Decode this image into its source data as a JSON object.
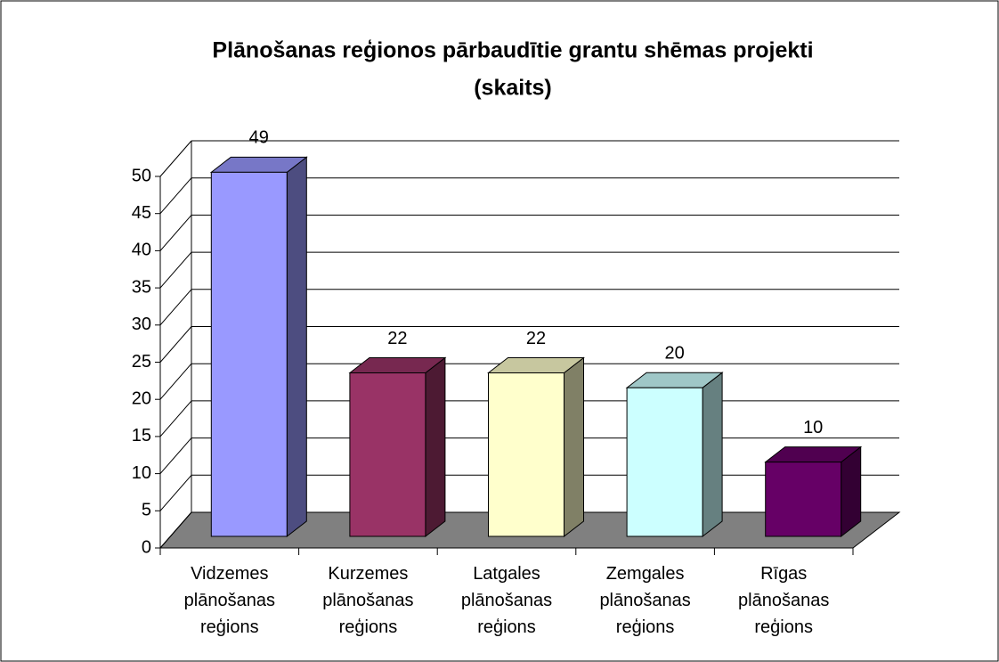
{
  "chart_data": {
    "type": "bar3d",
    "title": "Plānošanas reģionos pārbaudītie grantu shēmas projekti",
    "subtitle": "(skaits)",
    "categories": [
      "Vidzemes plānošanas reģions",
      "Kurzemes plānošanas reģions",
      "Latgales plānošanas reģions",
      "Zemgales plānošanas reģions",
      "Rīgas plānošanas reģions"
    ],
    "values": [
      49,
      22,
      22,
      20,
      10
    ],
    "colors": [
      "#9999ff",
      "#993366",
      "#ffffcc",
      "#ccffff",
      "#660066"
    ],
    "ylim": [
      0,
      50
    ],
    "yticks": [
      0,
      5,
      10,
      15,
      20,
      25,
      30,
      35,
      40,
      45,
      50
    ],
    "grid": true,
    "floor_color": "#808080"
  }
}
